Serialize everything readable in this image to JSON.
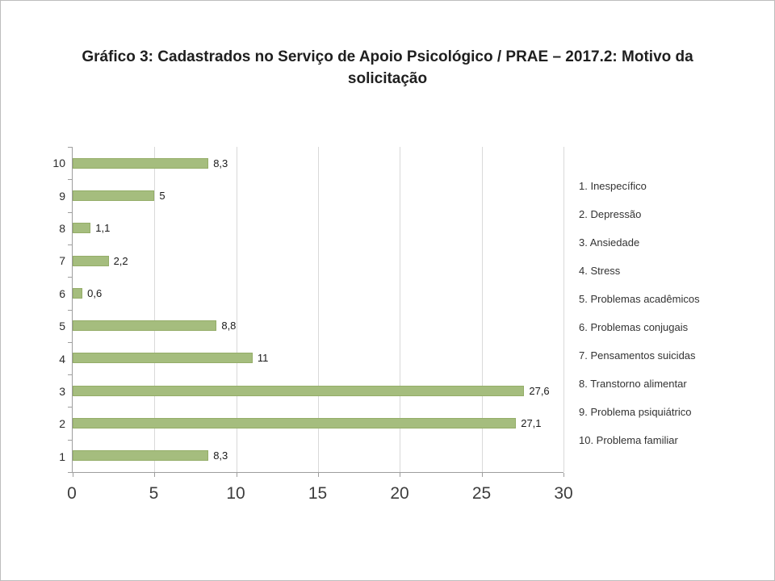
{
  "page": {
    "title_lines": [
      "Gráfico 3: Cadastrados no Serviço de Apoio Psicológico / PRAE – 2017.2: Motivo da",
      "solicitação"
    ]
  },
  "chart_data": {
    "type": "bar",
    "orientation": "horizontal",
    "title": "Gráfico 3: Cadastrados no Serviço de Apoio Psicológico / PRAE – 2017.2: Motivo da solicitação",
    "categories": [
      "10",
      "9",
      "8",
      "7",
      "6",
      "5",
      "4",
      "3",
      "2",
      "1"
    ],
    "values": [
      8.3,
      5,
      1.1,
      2.2,
      0.6,
      8.8,
      11,
      27.6,
      27.1,
      8.3
    ],
    "value_labels": [
      "8,3",
      "5",
      "1,1",
      "2,2",
      "0,6",
      "8,8",
      "11",
      "27,6",
      "27,1",
      "8,3"
    ],
    "xlim": [
      0,
      30
    ],
    "x_ticks": [
      "0",
      "5",
      "10",
      "15",
      "20",
      "25",
      "30"
    ],
    "grid": "vertical",
    "legend_position": "right",
    "legend": [
      "1. Inespecífico",
      "2. Depressão",
      "3. Ansiedade",
      "4. Stress",
      "5. Problemas acadêmicos",
      "6. Problemas conjugais",
      "7. Pensamentos suicidas",
      "8. Transtorno alimentar",
      "9. Problema psiquiátrico",
      "10. Problema familiar"
    ],
    "bar_color": "#a5bd7e",
    "bar_border_color": "#94ad68",
    "axis_color": "#9e9e9e",
    "gridline_color": "#d9d9d9"
  }
}
